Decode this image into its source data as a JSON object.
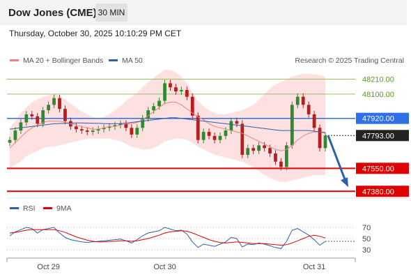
{
  "header": {
    "title": "Dow Jones (CME)",
    "timeframe": "30 MIN"
  },
  "datetime": "Thursday, October 30, 2025 10:10:29 PM CET",
  "legend": {
    "bollinger": "MA 20 + Bollinger Bands",
    "ma50": "MA 50",
    "copyright": "Research © 2025 Trading Central",
    "rsi": "RSI",
    "rsi_ma": "9MA"
  },
  "colors": {
    "candle_up": "#2f8a2f",
    "candle_down": "#b81d1d",
    "ma20": "#f08080",
    "ma50": "#2e5fa8",
    "band_fill": "#fde0e0",
    "resistance": "#99c266",
    "pivot": "#2f6fe8",
    "support": "#e00000",
    "current": "#222222",
    "arrow": "#2e5fa8"
  },
  "chart_data": [
    {
      "type": "candlestick",
      "ylim": [
        47340,
        48280
      ],
      "x_ticks": [
        "Oct 29",
        "Oct 30",
        "Oct 31"
      ],
      "levels": [
        {
          "label": "48210.00",
          "value": 48210,
          "kind": "resistance"
        },
        {
          "label": "48100.00",
          "value": 48100,
          "kind": "resistance"
        },
        {
          "label": "47920.00",
          "value": 47920,
          "kind": "pivot"
        },
        {
          "label": "47793.00",
          "value": 47793,
          "kind": "current"
        },
        {
          "label": "47550.00",
          "value": 47550,
          "kind": "support"
        },
        {
          "label": "47380.00",
          "value": 47380,
          "kind": "support"
        }
      ],
      "close": [
        47760,
        47830,
        47890,
        47950,
        47935,
        47880,
        47980,
        48020,
        48070,
        47990,
        47900,
        47860,
        47840,
        47830,
        47820,
        47830,
        47840,
        47850,
        47860,
        47870,
        47880,
        47850,
        47800,
        47850,
        47920,
        47980,
        48010,
        48050,
        48180,
        48150,
        48120,
        48130,
        48080,
        47940,
        47760,
        47820,
        47790,
        47760,
        47790,
        47830,
        47900,
        47880,
        47650,
        47700,
        47680,
        47720,
        47700,
        47660,
        47600,
        47560,
        47720,
        48020,
        48080,
        48020,
        47950,
        47850,
        47700,
        47793
      ],
      "ma20": [
        47700,
        47740,
        47780,
        47820,
        47850,
        47870,
        47890,
        47900,
        47900,
        47900,
        47890,
        47880,
        47870,
        47860,
        47850,
        47840,
        47840,
        47850,
        47860,
        47860,
        47870,
        47880,
        47880,
        47890,
        47910,
        47940,
        47970,
        48000,
        48030,
        48040,
        48040,
        48020,
        47990,
        47960,
        47930,
        47910,
        47880,
        47860,
        47850,
        47840,
        47830,
        47820,
        47810,
        47790,
        47770,
        47750,
        47730,
        47710,
        47690,
        47680,
        47690,
        47720,
        47760,
        47790,
        47810,
        47820,
        47820,
        47810
      ],
      "ma50": [
        47840,
        47845,
        47850,
        47855,
        47860,
        47865,
        47870,
        47875,
        47880,
        47882,
        47884,
        47885,
        47886,
        47886,
        47885,
        47884,
        47883,
        47882,
        47880,
        47880,
        47882,
        47885,
        47890,
        47895,
        47900,
        47905,
        47910,
        47915,
        47920,
        47925,
        47925,
        47920,
        47915,
        47910,
        47905,
        47900,
        47895,
        47890,
        47885,
        47880,
        47875,
        47870,
        47865,
        47860,
        47855,
        47850,
        47845,
        47840,
        47835,
        47830,
        47830,
        47830,
        47830,
        47830,
        47830,
        47825,
        47820,
        47815
      ],
      "bb_upper": [
        47850,
        47900,
        47960,
        48000,
        48040,
        48060,
        48080,
        48090,
        48100,
        48090,
        48060,
        48030,
        48000,
        47970,
        47950,
        47930,
        47920,
        47930,
        47950,
        47980,
        48010,
        48050,
        48080,
        48110,
        48150,
        48190,
        48220,
        48250,
        48280,
        48280,
        48260,
        48230,
        48180,
        48110,
        48050,
        48010,
        47980,
        47960,
        47950,
        47950,
        47960,
        47970,
        47980,
        48000,
        48020,
        48060,
        48100,
        48140,
        48170,
        48190,
        48210,
        48230,
        48240,
        48250,
        48250,
        48245,
        48240,
        48230
      ],
      "bb_lower": [
        47550,
        47580,
        47600,
        47640,
        47660,
        47680,
        47700,
        47710,
        47710,
        47720,
        47730,
        47740,
        47750,
        47760,
        47770,
        47770,
        47770,
        47770,
        47770,
        47760,
        47750,
        47730,
        47710,
        47700,
        47690,
        47690,
        47700,
        47720,
        47750,
        47760,
        47770,
        47770,
        47760,
        47740,
        47710,
        47690,
        47670,
        47650,
        47640,
        47630,
        47620,
        47610,
        47600,
        47580,
        47560,
        47530,
        47500,
        47480,
        47460,
        47450,
        47450,
        47460,
        47470,
        47480,
        47490,
        47500,
        47500,
        47500
      ]
    },
    {
      "type": "line",
      "ylim": [
        20,
        80
      ],
      "y_ticks": [
        70,
        50,
        30
      ],
      "rsi": [
        55,
        62,
        66,
        70,
        68,
        60,
        66,
        68,
        70,
        60,
        52,
        48,
        46,
        44,
        43,
        44,
        45,
        46,
        47,
        48,
        49,
        46,
        42,
        48,
        55,
        60,
        62,
        64,
        70,
        67,
        64,
        65,
        58,
        44,
        34,
        40,
        38,
        36,
        40,
        44,
        52,
        50,
        35,
        40,
        39,
        42,
        40,
        37,
        34,
        32,
        45,
        65,
        68,
        62,
        56,
        48,
        38,
        45
      ],
      "rsi_ma": [
        60,
        61,
        63,
        65,
        66,
        66,
        66,
        66,
        66,
        64,
        61,
        57,
        53,
        50,
        47,
        45,
        44,
        44,
        45,
        45,
        46,
        46,
        45,
        46,
        48,
        50,
        53,
        56,
        60,
        62,
        63,
        64,
        63,
        60,
        56,
        52,
        48,
        45,
        43,
        42,
        43,
        44,
        43,
        42,
        41,
        41,
        41,
        40,
        39,
        38,
        39,
        42,
        46,
        50,
        54,
        56,
        54,
        51
      ]
    }
  ]
}
